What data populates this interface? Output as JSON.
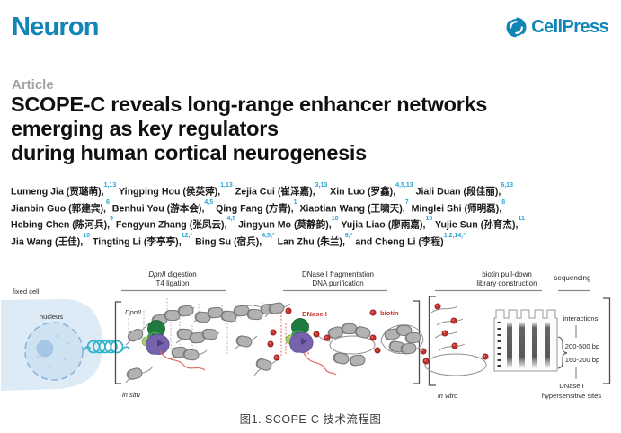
{
  "masthead": {
    "journal": "Neuron",
    "publisher": "CellPress",
    "brand_color": "#1185b6"
  },
  "article": {
    "kicker": "Article",
    "title_lines": [
      "SCOPE-C reveals long-range enhancer networks",
      "emerging as key regulators",
      "during human cortical neurogenesis"
    ]
  },
  "authors": {
    "superscript_color": "#29a5d6",
    "lines": [
      [
        {
          "n": "Lumeng Jia (贾璐萌),",
          "s": "1,13"
        },
        {
          "n": " Yingping Hou (侯英萍),",
          "s": "1,13"
        },
        {
          "n": " Zejia Cui (崔泽嘉),",
          "s": "3,13"
        },
        {
          "n": " Xin Luo (罗鑫),",
          "s": "4,5,13"
        },
        {
          "n": " Jiali Duan (段佳丽),",
          "s": "6,13"
        }
      ],
      [
        {
          "n": "Jianbin Guo (郭建宾),",
          "s": "6"
        },
        {
          "n": " Benhui You (游本会),",
          "s": "4,5"
        },
        {
          "n": " Qing Fang (方青),",
          "s": "1"
        },
        {
          "n": " Xiaotian Wang (王啸天),",
          "s": "7"
        },
        {
          "n": " Minglei Shi (师明磊),",
          "s": "8"
        }
      ],
      [
        {
          "n": "Hebing Chen (陈河兵),",
          "s": "9"
        },
        {
          "n": " Fengyun Zhang (张凤云),",
          "s": "4,5"
        },
        {
          "n": " Jingyun Mo (莫静韵),",
          "s": "10"
        },
        {
          "n": " Yujia Liao (廖雨嘉),",
          "s": "10"
        },
        {
          "n": " Yujie Sun (孙育杰),",
          "s": "11"
        }
      ],
      [
        {
          "n": "Jia Wang (王佳),",
          "s": "10"
        },
        {
          "n": " Tingting Li (李亭亭),",
          "s": "12,*"
        },
        {
          "n": " Bing Su (宿兵),",
          "s": "4,5,*"
        },
        {
          "n": " Lan Zhu (朱兰),",
          "s": "6,*"
        },
        {
          "n": " and Cheng Li (李程)",
          "s": "1,2,14,*"
        }
      ]
    ]
  },
  "figure": {
    "stages": {
      "stage1_line1_italic": "DpnII",
      "stage1_line1_rest": " digestion",
      "stage1_line2": "T4 ligation",
      "stage2_line1": "DNase I fragmentation",
      "stage2_line2": "DNA purification",
      "stage3_line1": "biotin pull-down",
      "stage3_line2": "library construction",
      "stage4_line1": "sequencing"
    },
    "labels": {
      "fixed_cell": "fixed cell",
      "nucleus": "nucleus",
      "dpnii": "DpnII",
      "in_situ": "in situ",
      "dnase": "DNase I",
      "biotin": "biotin",
      "in_vitro": "in vitro",
      "interactions": "interactions",
      "band_upper": "200-500 bp",
      "band_lower": "160-200 bp",
      "dhs_line1": "DNase I",
      "dhs_line2": "hypersensitive sites"
    },
    "colors": {
      "biotin_red": "#c4332d",
      "red_label": "#cf3832",
      "cell_fill": "#dcebf6",
      "nucleus_fill": "#cfe2f1",
      "nucleolus_fill": "#a6c6e6",
      "chromatin_teal": "#2fb3c9",
      "nucleosome_gray": "#b2b2b2",
      "protein_dark_green": "#1e7a3e",
      "protein_light_green": "#a9cf6e",
      "protein_purple": "#7763ab"
    }
  },
  "caption": {
    "text": "图1. SCOPE-C 技术流程图"
  }
}
